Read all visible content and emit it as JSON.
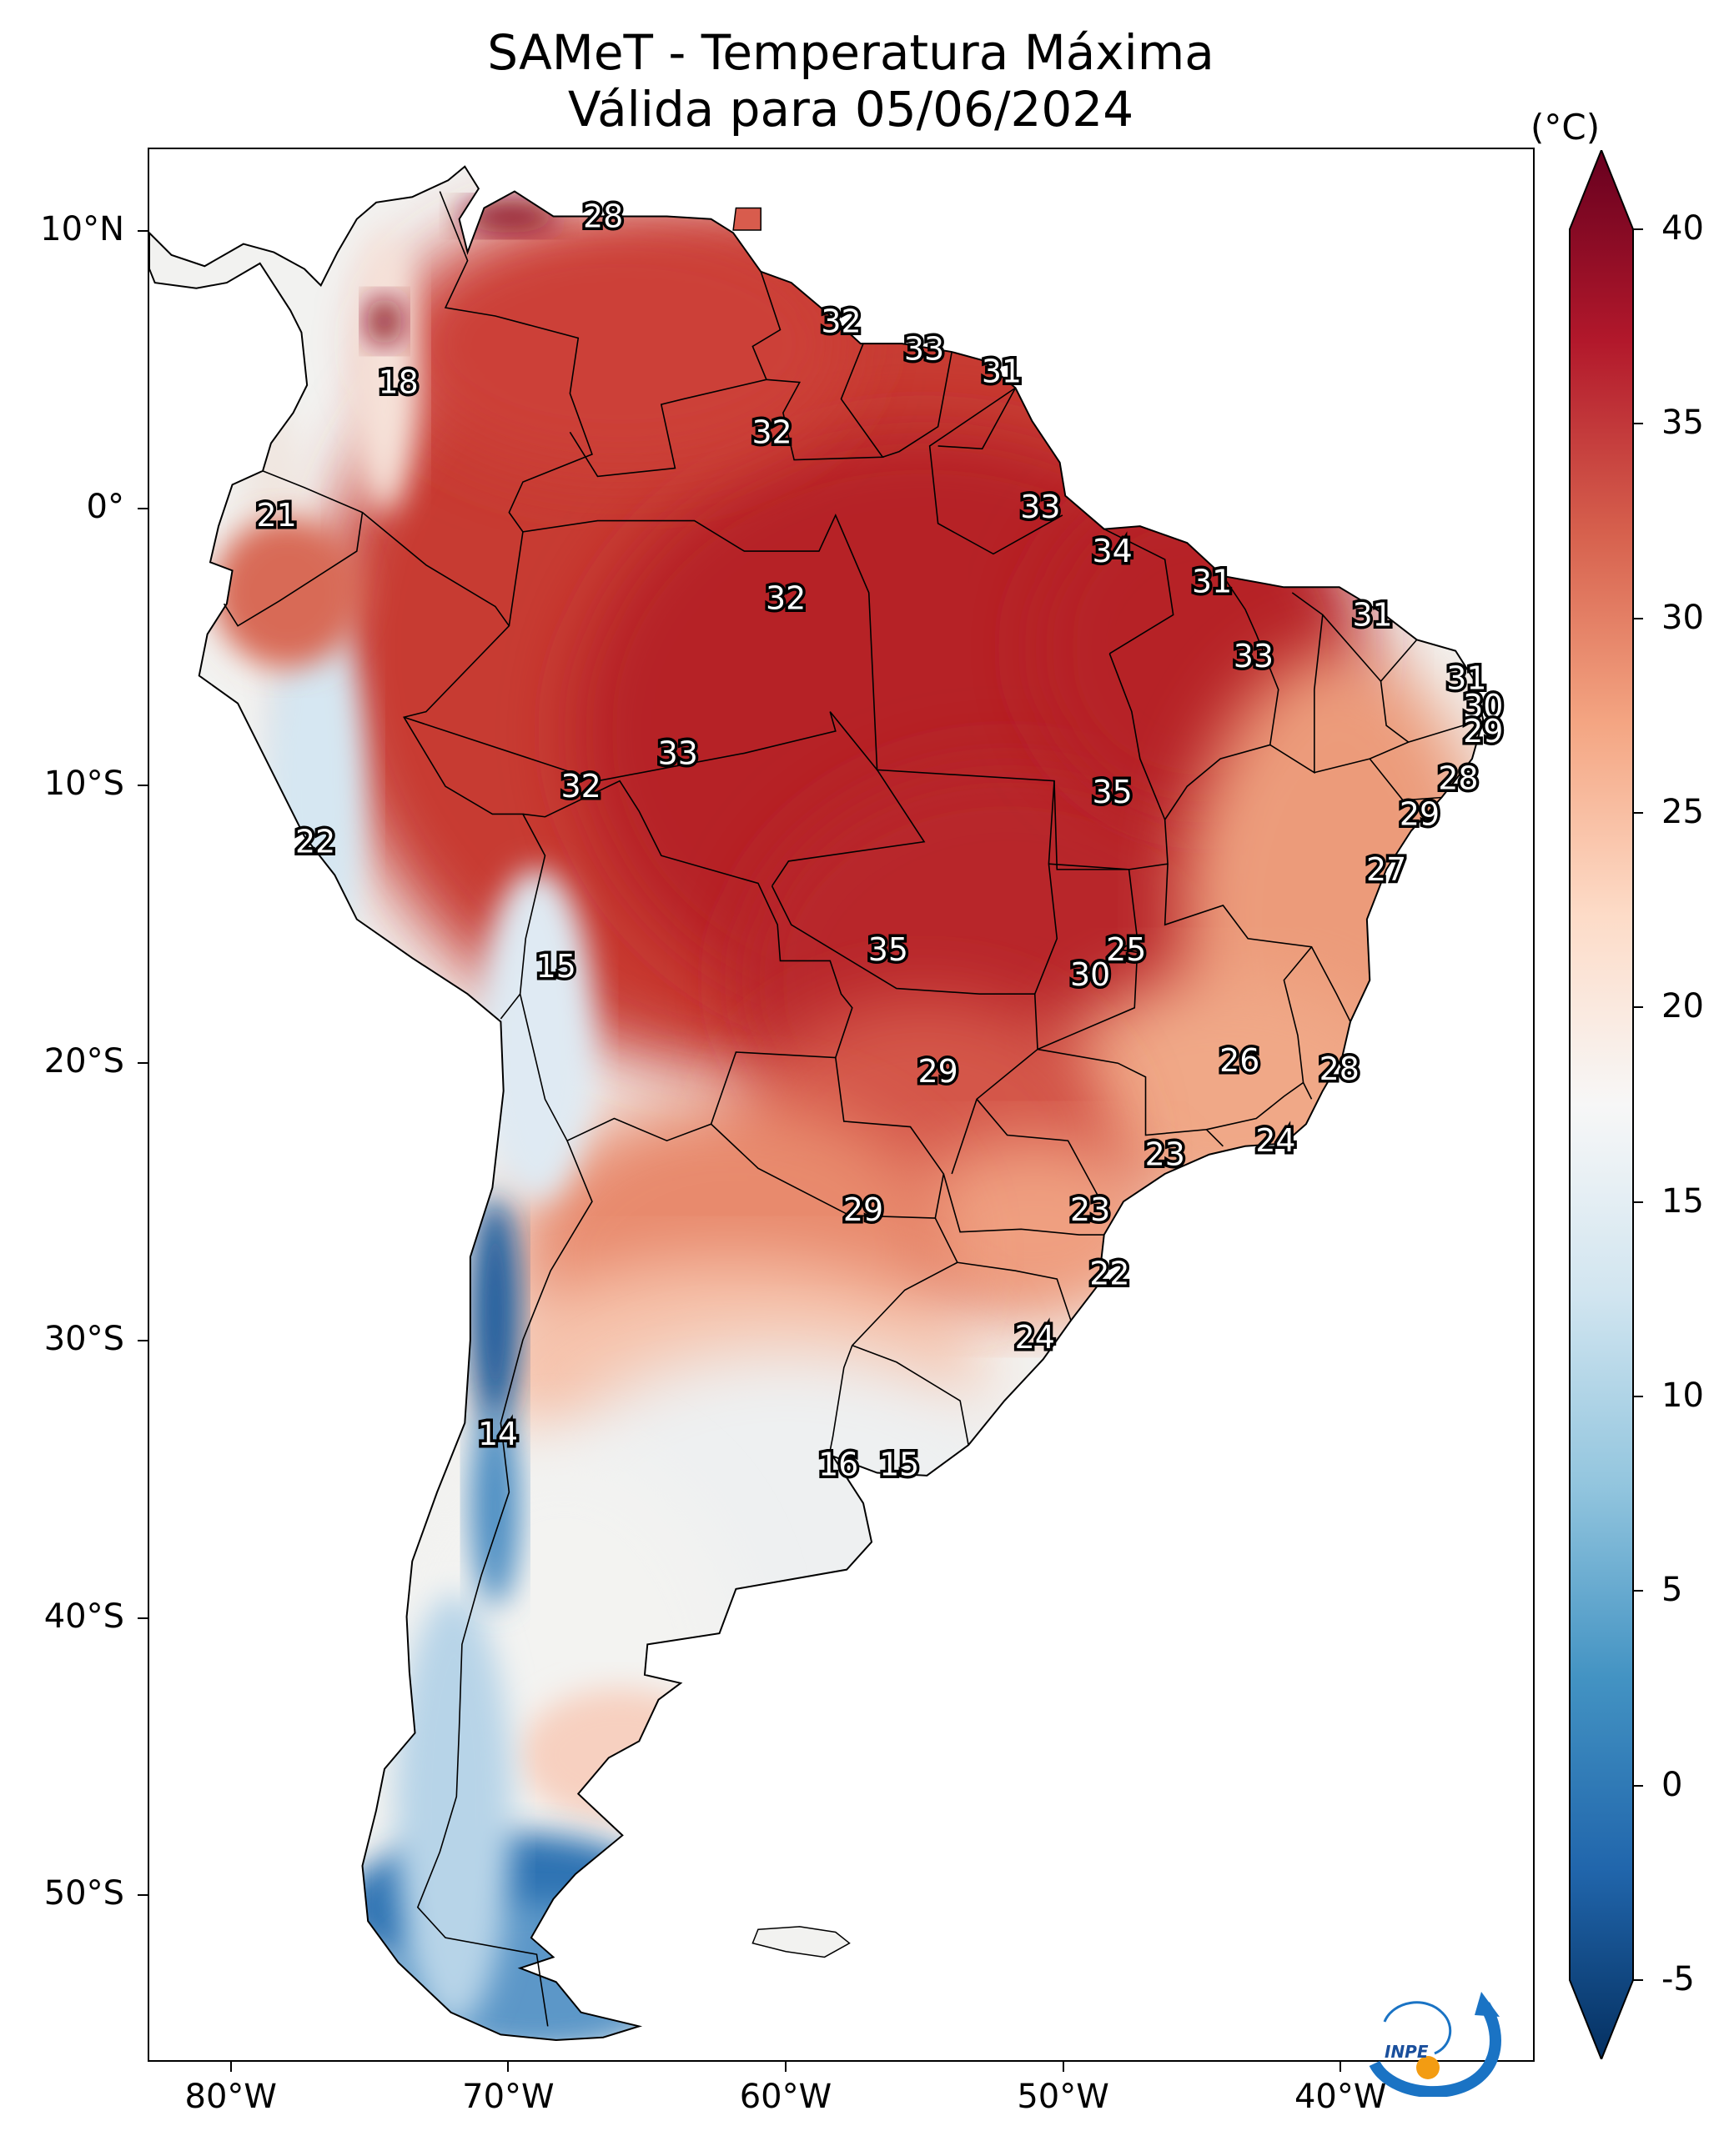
{
  "title": "SAMeT - Temperatura Máxima",
  "subtitle": "Válida para 05/06/2024",
  "colorbar": {
    "unit": "(°C)",
    "ticks": [
      "40",
      "35",
      "30",
      "25",
      "20",
      "15",
      "10",
      "5",
      "0",
      "-5"
    ],
    "range": [
      -5,
      40
    ],
    "colors": [
      "#053061",
      "#2166ac",
      "#4393c3",
      "#92c5de",
      "#d1e5f0",
      "#f7f7f7",
      "#fddbc7",
      "#f4a582",
      "#d6604d",
      "#b2182b",
      "#67001f"
    ]
  },
  "axes": {
    "lon_ticks": [
      "80°W",
      "70°W",
      "60°W",
      "50°W",
      "40°W"
    ],
    "lat_ticks": [
      "10°N",
      "0°",
      "10°S",
      "20°S",
      "30°S",
      "40°S",
      "50°S"
    ],
    "lon_range": [
      -83,
      -33
    ],
    "lat_range": [
      -56,
      13
    ]
  },
  "logo_text": "INPE",
  "labels": [
    {
      "text": "28",
      "lon": -66.6,
      "lat": 10.6
    },
    {
      "text": "18",
      "lon": -74,
      "lat": 4.6
    },
    {
      "text": "21",
      "lon": -78.4,
      "lat": -0.2
    },
    {
      "text": "22",
      "lon": -77,
      "lat": -12
    },
    {
      "text": "15",
      "lon": -68.3,
      "lat": -16.5
    },
    {
      "text": "14",
      "lon": -70.4,
      "lat": -33.4
    },
    {
      "text": "32",
      "lon": -58,
      "lat": 6.8
    },
    {
      "text": "33",
      "lon": -55,
      "lat": 5.8
    },
    {
      "text": "31",
      "lon": -52.2,
      "lat": 5.0
    },
    {
      "text": "32",
      "lon": -60.5,
      "lat": 2.8
    },
    {
      "text": "33",
      "lon": -50.8,
      "lat": 0.1
    },
    {
      "text": "34",
      "lon": -48.2,
      "lat": -1.5
    },
    {
      "text": "31",
      "lon": -44.6,
      "lat": -2.6
    },
    {
      "text": "31",
      "lon": -38.8,
      "lat": -3.8
    },
    {
      "text": "33",
      "lon": -43.1,
      "lat": -5.3
    },
    {
      "text": "31",
      "lon": -35.4,
      "lat": -6.1
    },
    {
      "text": "30",
      "lon": -34.8,
      "lat": -7.1
    },
    {
      "text": "29",
      "lon": -34.8,
      "lat": -8.0
    },
    {
      "text": "32",
      "lon": -60,
      "lat": -3.2
    },
    {
      "text": "33",
      "lon": -63.9,
      "lat": -8.8
    },
    {
      "text": "32",
      "lon": -67.4,
      "lat": -10.0
    },
    {
      "text": "35",
      "lon": -48.2,
      "lat": -10.2
    },
    {
      "text": "28",
      "lon": -35.7,
      "lat": -9.7
    },
    {
      "text": "29",
      "lon": -37.1,
      "lat": -11.0
    },
    {
      "text": "27",
      "lon": -38.3,
      "lat": -13.0
    },
    {
      "text": "35",
      "lon": -56.3,
      "lat": -15.9
    },
    {
      "text": "25",
      "lon": -47.7,
      "lat": -15.9
    },
    {
      "text": "30",
      "lon": -49.0,
      "lat": -16.8
    },
    {
      "text": "29",
      "lon": -54.5,
      "lat": -20.3
    },
    {
      "text": "26",
      "lon": -43.6,
      "lat": -19.9
    },
    {
      "text": "28",
      "lon": -40.0,
      "lat": -20.2
    },
    {
      "text": "24",
      "lon": -42.3,
      "lat": -22.8
    },
    {
      "text": "23",
      "lon": -46.3,
      "lat": -23.3
    },
    {
      "text": "23",
      "lon": -49.0,
      "lat": -25.3
    },
    {
      "text": "29",
      "lon": -57.2,
      "lat": -25.3
    },
    {
      "text": "22",
      "lon": -48.3,
      "lat": -27.6
    },
    {
      "text": "24",
      "lon": -51.0,
      "lat": -29.9
    },
    {
      "text": "16",
      "lon": -58.1,
      "lat": -34.5
    },
    {
      "text": "15",
      "lon": -55.9,
      "lat": -34.5
    }
  ]
}
